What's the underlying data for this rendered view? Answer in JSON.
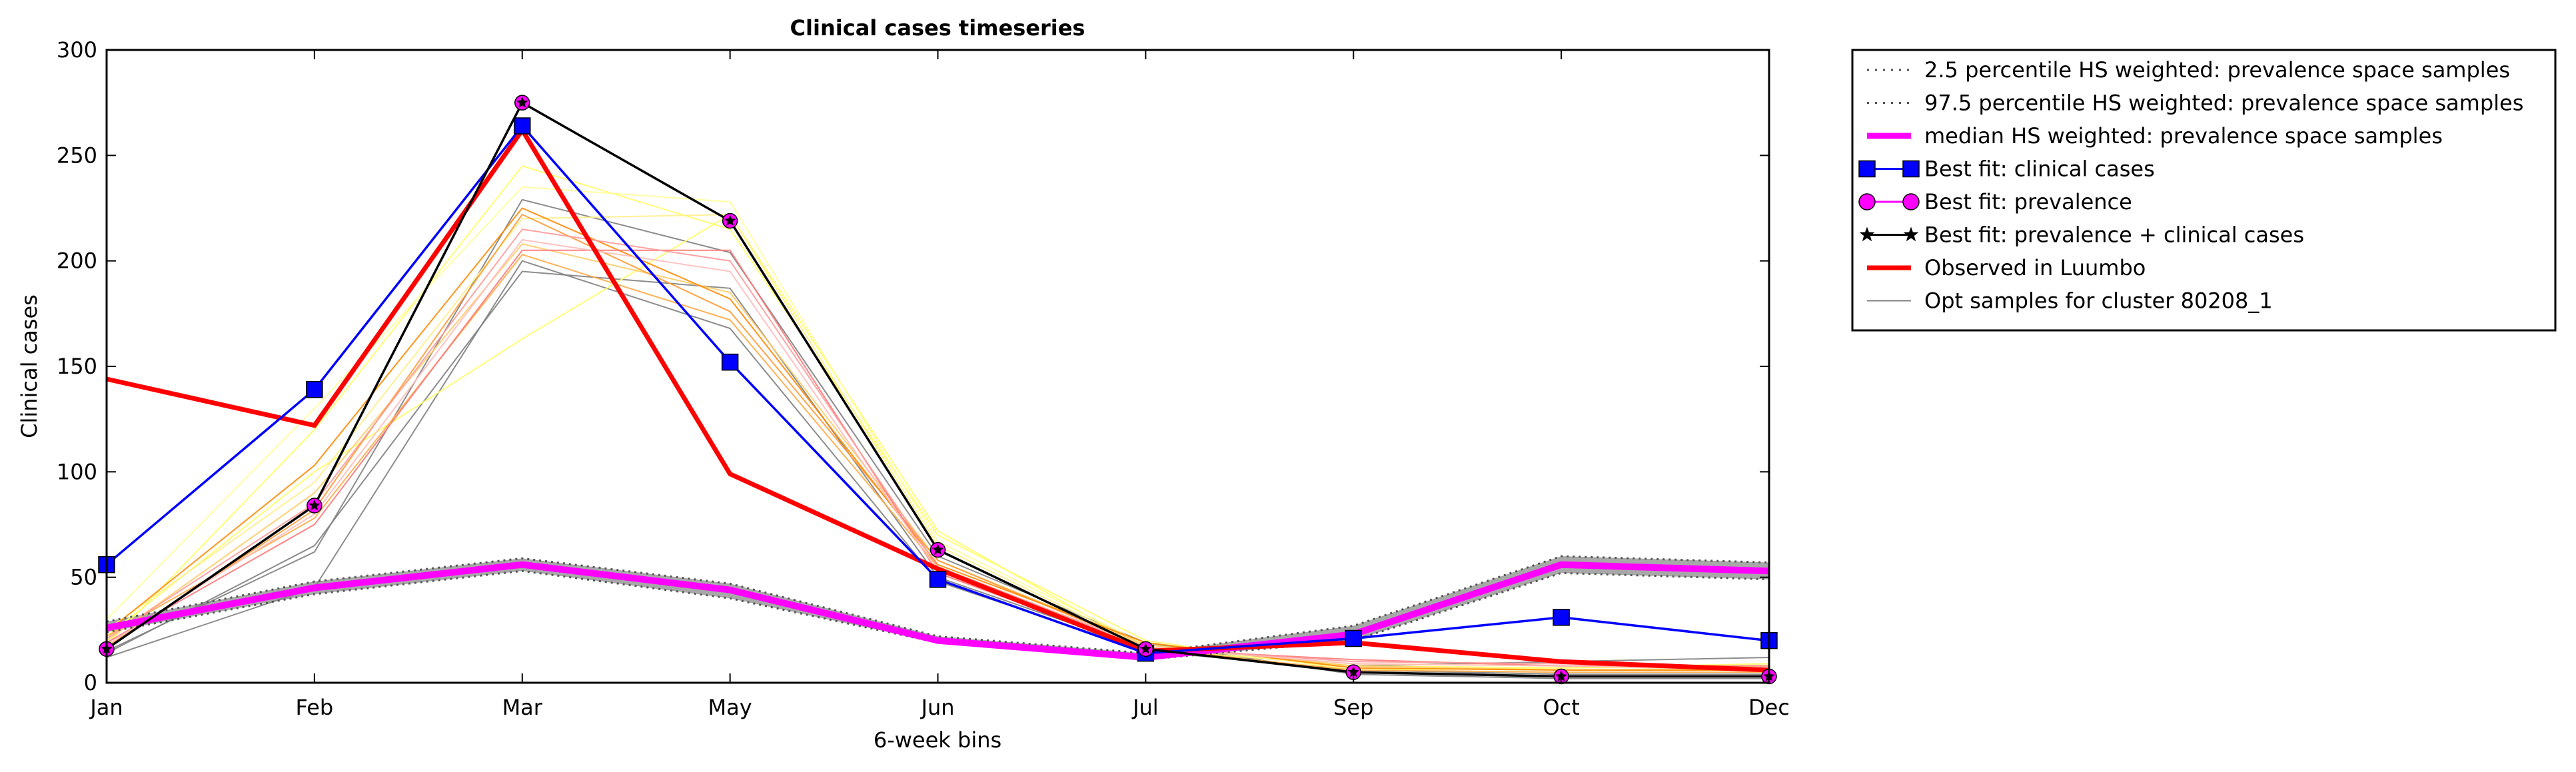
{
  "chart_data": {
    "type": "line",
    "title": "Clinical cases timeseries",
    "xlabel": "6-week bins",
    "ylabel": "Clinical cases",
    "categories": [
      "Jan",
      "Feb",
      "Mar",
      "May",
      "Jun",
      "Jul",
      "Sep",
      "Oct",
      "Dec"
    ],
    "ylim": [
      0,
      300
    ],
    "yticks": [
      0,
      50,
      100,
      150,
      200,
      250,
      300
    ],
    "grid": false,
    "legend_position": "outside-right-top",
    "band": {
      "lower": [
        24,
        42,
        53,
        40,
        19,
        11,
        20,
        52,
        49
      ],
      "upper": [
        29,
        48,
        59,
        47,
        22,
        14,
        27,
        60,
        57
      ],
      "color": "#999999"
    },
    "series": [
      {
        "name": "2.5 percentile HS weighted: prevalence space samples",
        "style": "dotted",
        "color": "#555555",
        "values": [
          24,
          42,
          53,
          40,
          19,
          11,
          20,
          52,
          49
        ]
      },
      {
        "name": "97.5 percentile HS weighted: prevalence space samples",
        "style": "dotted",
        "color": "#555555",
        "values": [
          29,
          48,
          59,
          47,
          22,
          14,
          27,
          60,
          57
        ]
      },
      {
        "name": "median HS weighted: prevalence space samples",
        "style": "median",
        "color": "#ff00ff",
        "values": [
          26,
          45,
          56,
          44,
          20,
          12,
          23,
          56,
          53
        ]
      },
      {
        "name": "Best fit: clinical cases",
        "style": "square",
        "color": "#0000ff",
        "values": [
          56,
          139,
          264,
          152,
          49,
          14,
          21,
          31,
          20
        ]
      },
      {
        "name": "Best fit: prevalence",
        "style": "circle",
        "color": "#ff00ff",
        "values": [
          16,
          84,
          275,
          219,
          63,
          16,
          5,
          3,
          3
        ]
      },
      {
        "name": "Best fit: prevalence + clinical cases",
        "style": "star",
        "color": "#000000",
        "values": [
          16,
          84,
          275,
          219,
          63,
          16,
          5,
          3,
          3
        ]
      },
      {
        "name": "Observed in Luumbo",
        "style": "observed",
        "color": "#ff0000",
        "values": [
          144,
          122,
          262,
          99,
          54,
          15,
          19,
          10,
          6
        ]
      },
      {
        "name": "Opt samples for cluster 80208_1",
        "style": "thin",
        "color": "#808080",
        "values": [
          12,
          45,
          200,
          168,
          48,
          15,
          6,
          4,
          4
        ]
      }
    ],
    "opt_samples": [
      {
        "color": "#808080",
        "values": [
          12,
          45,
          200,
          168,
          48,
          15,
          6,
          4,
          4
        ]
      },
      {
        "color": "#808080",
        "values": [
          14,
          65,
          195,
          187,
          50,
          16,
          8,
          10,
          12
        ]
      },
      {
        "color": "#808080",
        "values": [
          15,
          62,
          229,
          204,
          60,
          19,
          4,
          2,
          2
        ]
      },
      {
        "color": "#ffff66",
        "values": [
          18,
          120,
          245,
          215,
          70,
          20,
          6,
          7,
          8
        ]
      },
      {
        "color": "#ffff66",
        "values": [
          22,
          100,
          163,
          222,
          72,
          16,
          8,
          7,
          9
        ]
      },
      {
        "color": "#ffff99",
        "values": [
          30,
          130,
          235,
          228,
          67,
          18,
          7,
          6,
          7
        ]
      },
      {
        "color": "#ffee88",
        "values": [
          25,
          95,
          220,
          222,
          65,
          17,
          9,
          8,
          6
        ]
      },
      {
        "color": "#ffcc66",
        "values": [
          20,
          90,
          208,
          185,
          58,
          18,
          8,
          6,
          6
        ]
      },
      {
        "color": "#ff9933",
        "values": [
          17,
          82,
          222,
          176,
          58,
          17,
          5,
          3,
          3
        ]
      },
      {
        "color": "#ffaa44",
        "values": [
          22,
          78,
          203,
          172,
          55,
          16,
          6,
          5,
          5
        ]
      },
      {
        "color": "#ff8800",
        "values": [
          24,
          103,
          225,
          182,
          56,
          19,
          7,
          6,
          6
        ]
      },
      {
        "color": "#ff7777",
        "values": [
          19,
          75,
          205,
          205,
          52,
          16,
          11,
          8,
          8
        ]
      },
      {
        "color": "#ff9999",
        "values": [
          21,
          85,
          215,
          200,
          55,
          17,
          10,
          9,
          7
        ]
      },
      {
        "color": "#ffbbbb",
        "values": [
          18,
          80,
          210,
          195,
          53,
          17,
          9,
          8,
          6
        ]
      }
    ]
  }
}
